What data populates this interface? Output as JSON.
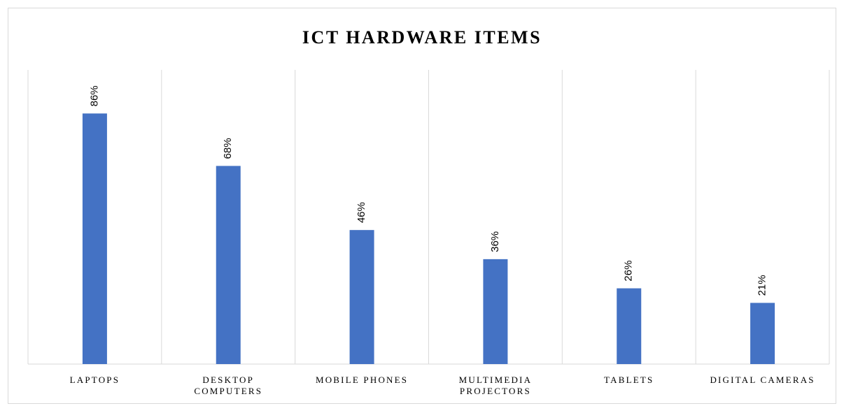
{
  "chart_data": {
    "type": "bar",
    "title": "ICT HARDWARE ITEMS",
    "categories": [
      "LAPTOPS",
      "DESKTOP COMPUTERS",
      "MOBILE PHONES",
      "MULTIMEDIA PROJECTORS",
      "TABLETS",
      "DIGITAL CAMERAS"
    ],
    "values": [
      86,
      68,
      46,
      36,
      26,
      21
    ],
    "value_labels": [
      "86%",
      "68%",
      "46%",
      "36%",
      "26%",
      "21%"
    ],
    "color": "#4472c4",
    "ylim": [
      0,
      100
    ]
  }
}
